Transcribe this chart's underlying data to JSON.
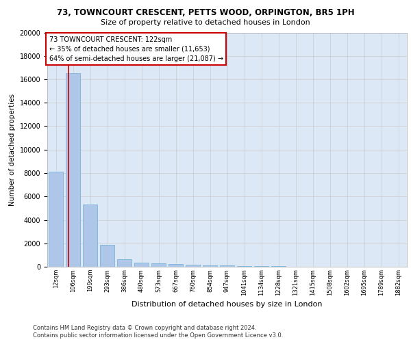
{
  "title1": "73, TOWNCOURT CRESCENT, PETTS WOOD, ORPINGTON, BR5 1PH",
  "title2": "Size of property relative to detached houses in London",
  "xlabel": "Distribution of detached houses by size in London",
  "ylabel": "Number of detached properties",
  "bar_labels": [
    "12sqm",
    "106sqm",
    "199sqm",
    "293sqm",
    "386sqm",
    "480sqm",
    "573sqm",
    "667sqm",
    "760sqm",
    "854sqm",
    "947sqm",
    "1041sqm",
    "1134sqm",
    "1228sqm",
    "1321sqm",
    "1415sqm",
    "1508sqm",
    "1602sqm",
    "1695sqm",
    "1789sqm",
    "1882sqm"
  ],
  "bar_values": [
    8100,
    16500,
    5300,
    1850,
    650,
    350,
    270,
    220,
    200,
    130,
    90,
    60,
    40,
    30,
    20,
    15,
    10,
    8,
    6,
    4,
    3
  ],
  "bar_color": "#aec7e8",
  "bar_edge_color": "#6baed6",
  "property_label": "73 TOWNCOURT CRESCENT: 122sqm",
  "annotation_line1": "← 35% of detached houses are smaller (11,653)",
  "annotation_line2": "64% of semi-detached houses are larger (21,087) →",
  "annotation_box_color": "#ffffff",
  "annotation_box_edge_color": "#cc0000",
  "red_line_color": "#cc0000",
  "ylim": [
    0,
    20000
  ],
  "yticks": [
    0,
    2000,
    4000,
    6000,
    8000,
    10000,
    12000,
    14000,
    16000,
    18000,
    20000
  ],
  "grid_color": "#cccccc",
  "bg_color": "#dce8f5",
  "footer1": "Contains HM Land Registry data © Crown copyright and database right 2024.",
  "footer2": "Contains public sector information licensed under the Open Government Licence v3.0."
}
